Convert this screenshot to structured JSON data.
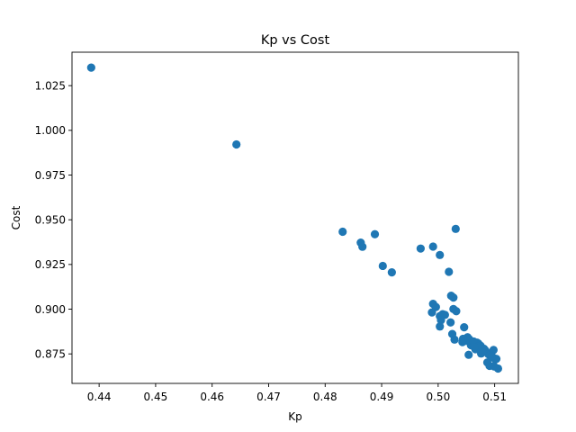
{
  "chart_data": {
    "type": "scatter",
    "title": "Kp vs Cost",
    "xlabel": "Kp",
    "ylabel": "Cost",
    "xlim": [
      0.4352,
      0.5142
    ],
    "ylim": [
      0.8585,
      1.0437
    ],
    "xticks": [
      0.44,
      0.45,
      0.46,
      0.47,
      0.48,
      0.49,
      0.5,
      0.51
    ],
    "xtick_labels": [
      "0.44",
      "0.45",
      "0.46",
      "0.47",
      "0.48",
      "0.49",
      "0.50",
      "0.51"
    ],
    "yticks": [
      0.875,
      0.9,
      0.925,
      0.95,
      0.975,
      1.0,
      1.025
    ],
    "ytick_labels": [
      "0.875",
      "0.900",
      "0.925",
      "0.950",
      "0.975",
      "1.000",
      "1.025"
    ],
    "grid": false,
    "color": "#1f77b4",
    "series": [
      {
        "x": [
          0.4386,
          0.4643,
          0.4831,
          0.4863,
          0.4866,
          0.4888,
          0.4902,
          0.4918,
          0.4969,
          0.4991,
          0.5003,
          0.5019,
          0.5031,
          0.4991,
          0.4996,
          0.4989,
          0.5003,
          0.5008,
          0.5012,
          0.5003,
          0.5005,
          0.5022,
          0.5027,
          0.5032,
          0.5025,
          0.5029,
          0.5044,
          0.5052,
          0.5046,
          0.5023,
          0.5027,
          0.5043,
          0.5047,
          0.5053,
          0.5055,
          0.5061,
          0.5058,
          0.5069,
          0.5071,
          0.5054,
          0.5066,
          0.5073,
          0.5075,
          0.5081,
          0.5085,
          0.5083,
          0.5089,
          0.5094,
          0.5097,
          0.5101,
          0.5103,
          0.5098,
          0.5106,
          0.5087,
          0.5091,
          0.5057,
          0.5063,
          0.5076,
          0.5092,
          0.5095,
          0.5099,
          0.5078,
          0.5069,
          0.5064
        ],
        "y": [
          1.0351,
          0.9921,
          0.9433,
          0.9372,
          0.9349,
          0.9419,
          0.9242,
          0.9206,
          0.9339,
          0.935,
          0.9303,
          0.9209,
          0.9449,
          0.903,
          0.9012,
          0.8982,
          0.8961,
          0.8972,
          0.8968,
          0.8903,
          0.8938,
          0.8926,
          0.9001,
          0.8989,
          0.8861,
          0.883,
          0.8834,
          0.8843,
          0.8899,
          0.9075,
          0.9065,
          0.8816,
          0.8822,
          0.8827,
          0.8832,
          0.8803,
          0.8799,
          0.8813,
          0.8808,
          0.8745,
          0.8776,
          0.8784,
          0.8796,
          0.8779,
          0.8762,
          0.8771,
          0.8748,
          0.8735,
          0.8729,
          0.8719,
          0.8722,
          0.8772,
          0.8668,
          0.8702,
          0.8683,
          0.8811,
          0.8819,
          0.8752,
          0.8742,
          0.8737,
          0.868,
          0.8758,
          0.879,
          0.8788
        ]
      }
    ]
  }
}
